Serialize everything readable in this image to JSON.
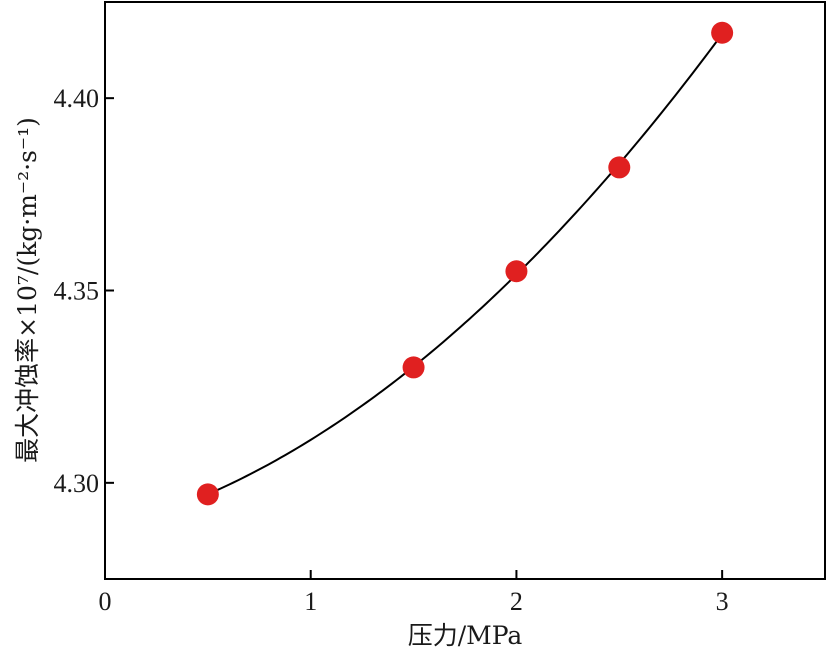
{
  "chart_data": {
    "type": "scatter",
    "xlabel": "压力/MPa",
    "ylabel": "最大冲蚀率×10⁷/(kg·m⁻²·s⁻¹)",
    "xlim": [
      0,
      3.5
    ],
    "ylim": [
      4.275,
      4.425
    ],
    "x_ticks": [
      0,
      1,
      2,
      3
    ],
    "x_tick_labels": [
      "0",
      "1",
      "2",
      "3"
    ],
    "y_ticks": [
      4.3,
      4.35,
      4.4
    ],
    "y_tick_labels": [
      "4.30",
      "4.35",
      "4.40"
    ],
    "grid": false,
    "series": [
      {
        "x": [
          0.5,
          1.5,
          2.0,
          2.5,
          3.0
        ],
        "y": [
          4.297,
          4.33,
          4.355,
          4.382,
          4.417
        ],
        "marker_color": "#e02020",
        "fit_line": true,
        "fit_color": "#000000"
      }
    ]
  }
}
